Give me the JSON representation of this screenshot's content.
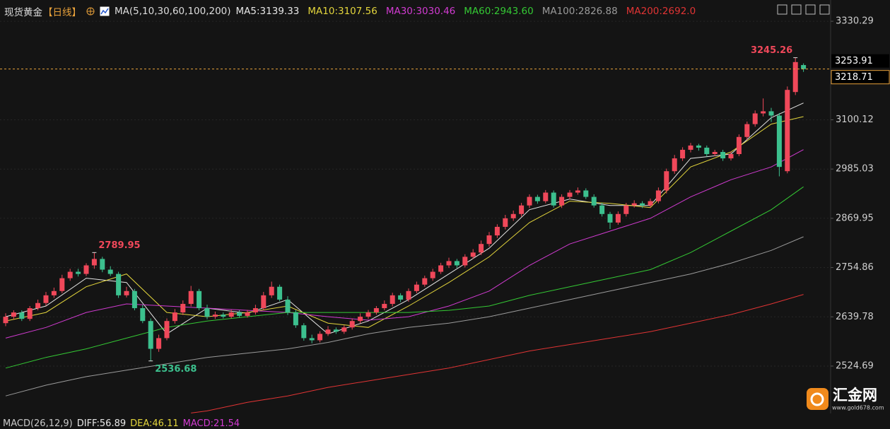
{
  "chart_data": {
    "type": "candlestick",
    "header": {
      "title": "现货黄金",
      "period": "【日线】",
      "ma_params": "MA(5,10,30,60,100,200)"
    },
    "up_color": "#f0485a",
    "down_color": "#3cc08e",
    "grid": true,
    "ylim": [
      2414,
      3380
    ],
    "yticks": [
      2524.69,
      2639.78,
      2754.86,
      2869.95,
      2985.03,
      3100.12,
      3330.29
    ],
    "price_labels": [
      3253.91,
      3218.71
    ],
    "open": [
      2625,
      2640,
      2650,
      2635,
      2660,
      2672,
      2690,
      2700,
      2730,
      2745,
      2740,
      2760,
      2775,
      2750,
      2740,
      2690,
      2700,
      2660,
      2630,
      2565,
      2590,
      2630,
      2650,
      2670,
      2700,
      2660,
      2640,
      2645,
      2640,
      2650,
      2642,
      2650,
      2660,
      2690,
      2710,
      2680,
      2650,
      2620,
      2590,
      2585,
      2600,
      2610,
      2605,
      2615,
      2630,
      2640,
      2650,
      2660,
      2670,
      2690,
      2680,
      2700,
      2715,
      2730,
      2745,
      2760,
      2770,
      2760,
      2780,
      2790,
      2810,
      2830,
      2850,
      2870,
      2880,
      2900,
      2920,
      2910,
      2930,
      2900,
      2920,
      2930,
      2935,
      2920,
      2900,
      2880,
      2860,
      2880,
      2900,
      2905,
      2900,
      2910,
      2935,
      2980,
      3010,
      3030,
      3040,
      3035,
      3020,
      3025,
      3010,
      3020,
      3060,
      3090,
      3115,
      3120,
      3110,
      2980,
      3165,
      3228
    ],
    "high": [
      2648,
      2655,
      2655,
      2665,
      2680,
      2698,
      2708,
      2738,
      2752,
      2752,
      2765,
      2789.95,
      2780,
      2758,
      2745,
      2710,
      2705,
      2668,
      2636,
      2598,
      2636,
      2658,
      2678,
      2712,
      2705,
      2668,
      2652,
      2650,
      2656,
      2655,
      2656,
      2668,
      2698,
      2722,
      2715,
      2688,
      2656,
      2625,
      2598,
      2606,
      2618,
      2615,
      2620,
      2636,
      2648,
      2656,
      2665,
      2678,
      2696,
      2695,
      2706,
      2722,
      2736,
      2752,
      2766,
      2778,
      2775,
      2786,
      2798,
      2818,
      2838,
      2856,
      2878,
      2888,
      2906,
      2926,
      2925,
      2936,
      2935,
      2926,
      2936,
      2942,
      2940,
      2926,
      2906,
      2885,
      2886,
      2906,
      2912,
      2910,
      2916,
      2942,
      2986,
      3018,
      3036,
      3046,
      3044,
      3040,
      3030,
      3030,
      3026,
      3066,
      3096,
      3122,
      3150,
      3128,
      3116,
      3178,
      3245.26,
      3232
    ],
    "low": [
      2618,
      2634,
      2630,
      2630,
      2655,
      2666,
      2684,
      2695,
      2724,
      2734,
      2735,
      2752,
      2744,
      2735,
      2684,
      2685,
      2655,
      2625,
      2536.68,
      2558,
      2585,
      2624,
      2644,
      2664,
      2655,
      2634,
      2635,
      2636,
      2636,
      2638,
      2638,
      2645,
      2655,
      2684,
      2676,
      2644,
      2614,
      2584,
      2578,
      2580,
      2595,
      2600,
      2600,
      2610,
      2625,
      2635,
      2645,
      2655,
      2664,
      2674,
      2675,
      2695,
      2710,
      2724,
      2740,
      2754,
      2754,
      2755,
      2775,
      2784,
      2804,
      2824,
      2844,
      2864,
      2874,
      2894,
      2904,
      2905,
      2895,
      2894,
      2914,
      2925,
      2915,
      2895,
      2874,
      2845,
      2855,
      2874,
      2895,
      2894,
      2895,
      2905,
      2928,
      2974,
      3004,
      3024,
      3028,
      3014,
      3015,
      3004,
      3005,
      3015,
      3054,
      3084,
      3108,
      3095,
      2968,
      2975,
      3158,
      3212
    ],
    "close": [
      2640,
      2650,
      2635,
      2660,
      2672,
      2690,
      2700,
      2730,
      2745,
      2740,
      2760,
      2775,
      2750,
      2740,
      2690,
      2700,
      2660,
      2630,
      2565,
      2590,
      2630,
      2650,
      2670,
      2700,
      2660,
      2640,
      2645,
      2640,
      2650,
      2642,
      2650,
      2660,
      2690,
      2710,
      2680,
      2650,
      2620,
      2590,
      2585,
      2600,
      2610,
      2605,
      2615,
      2630,
      2640,
      2650,
      2660,
      2670,
      2690,
      2680,
      2700,
      2715,
      2730,
      2745,
      2760,
      2770,
      2760,
      2780,
      2790,
      2810,
      2830,
      2850,
      2870,
      2880,
      2900,
      2920,
      2910,
      2930,
      2900,
      2920,
      2930,
      2935,
      2920,
      2900,
      2880,
      2860,
      2880,
      2900,
      2905,
      2900,
      2910,
      2935,
      2980,
      3010,
      3030,
      3040,
      3035,
      3020,
      3025,
      3010,
      3020,
      3060,
      3090,
      3115,
      3120,
      3110,
      2990,
      3170,
      3235,
      3218.71
    ],
    "series": [
      {
        "name": "MA5:3139.33",
        "color": "#e6e6e6",
        "x": [
          0,
          5,
          10,
          15,
          20,
          25,
          30,
          35,
          40,
          45,
          50,
          55,
          60,
          65,
          70,
          75,
          80,
          85,
          90,
          95,
          99
        ],
        "values": [
          2640,
          2665,
          2730,
          2720,
          2600,
          2660,
          2648,
          2680,
          2600,
          2630,
          2680,
          2740,
          2800,
          2890,
          2915,
          2900,
          2900,
          3010,
          3020,
          3105,
          3139.33
        ]
      },
      {
        "name": "MA10:3107.56",
        "color": "#e3d53c",
        "x": [
          0,
          5,
          10,
          15,
          20,
          25,
          30,
          35,
          40,
          45,
          50,
          55,
          60,
          65,
          70,
          75,
          80,
          85,
          90,
          95,
          99
        ],
        "values": [
          2630,
          2650,
          2710,
          2740,
          2650,
          2640,
          2650,
          2665,
          2625,
          2615,
          2665,
          2720,
          2780,
          2860,
          2910,
          2905,
          2895,
          2990,
          3025,
          3090,
          3107.56
        ]
      },
      {
        "name": "MA30:3030.46",
        "color": "#d13bd1",
        "x": [
          0,
          5,
          10,
          15,
          20,
          25,
          30,
          35,
          40,
          45,
          50,
          55,
          60,
          65,
          70,
          75,
          80,
          85,
          90,
          95,
          99
        ],
        "values": [
          2590,
          2615,
          2650,
          2670,
          2665,
          2660,
          2655,
          2650,
          2640,
          2632,
          2640,
          2665,
          2700,
          2760,
          2810,
          2840,
          2870,
          2920,
          2960,
          2990,
          3030.46
        ]
      },
      {
        "name": "MA60:2943.60",
        "color": "#34c934",
        "x": [
          0,
          5,
          10,
          15,
          20,
          25,
          30,
          35,
          40,
          45,
          50,
          55,
          60,
          65,
          70,
          75,
          80,
          85,
          90,
          95,
          99
        ],
        "values": [
          2520,
          2545,
          2565,
          2590,
          2615,
          2630,
          2640,
          2650,
          2650,
          2650,
          2650,
          2655,
          2665,
          2690,
          2710,
          2730,
          2750,
          2790,
          2840,
          2890,
          2943.6
        ]
      },
      {
        "name": "MA100:2826.88",
        "color": "#9a9a9a",
        "x": [
          0,
          5,
          10,
          15,
          20,
          25,
          30,
          35,
          40,
          45,
          50,
          55,
          60,
          65,
          70,
          75,
          80,
          85,
          90,
          95,
          99
        ],
        "values": [
          2455,
          2480,
          2500,
          2515,
          2530,
          2545,
          2555,
          2565,
          2580,
          2600,
          2615,
          2625,
          2640,
          2660,
          2680,
          2700,
          2720,
          2740,
          2765,
          2795,
          2826.88
        ]
      },
      {
        "name": "MA200:2692.0",
        "color": "#e03434",
        "x": [
          23,
          25,
          30,
          35,
          40,
          45,
          50,
          55,
          60,
          65,
          70,
          75,
          80,
          85,
          90,
          95,
          99
        ],
        "values": [
          2415,
          2420,
          2440,
          2455,
          2475,
          2490,
          2505,
          2520,
          2540,
          2560,
          2575,
          2590,
          2605,
          2625,
          2645,
          2670,
          2692.0
        ]
      }
    ],
    "macd_header": [
      {
        "text": "MACD(26,12,9)",
        "color": "#c8c8c8"
      },
      {
        "text": "DIFF:56.89",
        "color": "#e6e6e6"
      },
      {
        "text": "DEA:46.11",
        "color": "#e3d53c"
      },
      {
        "text": "MACD:21.54",
        "color": "#d13bd1"
      }
    ],
    "logo": {
      "name": "汇金网",
      "url": "www.gold678.com"
    }
  }
}
